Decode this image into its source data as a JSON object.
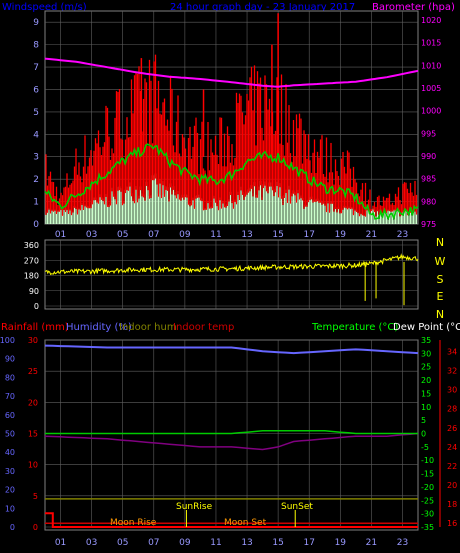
{
  "header": {
    "left_label": "Windspeed (m/s)",
    "title": "24 hour graph day - 23 January 2017",
    "right_label": "Barometer (hpa)"
  },
  "bottom_header": {
    "rainfall": "Rainfall (mm)",
    "humidity": "Humidity (%)",
    "indoor_hum": "Indoor hum",
    "indoor_temp": "Indoor temp",
    "temperature": "Temperature (°C)",
    "dew_point": "Dew Point (°C)"
  },
  "annotations": {
    "moon_rise": "Moon Rise",
    "sun_rise": "SunRise",
    "moon_set": "Moon Set",
    "sun_set": "SunSet"
  },
  "colors": {
    "wind": "#ff0000",
    "wind_avg": "#00cc00",
    "gust_band": "#ccffcc",
    "barometer": "#ff00ff",
    "direction": "#ffff00",
    "humidity": "#6666ff",
    "indoor_temp": "#cc0000",
    "temperature": "#00cc00",
    "dew_point": "#800080",
    "indoor_hum": "#808000",
    "rain": "#ff0000",
    "grid": "#606060",
    "axis_title": "#0000ff"
  },
  "chart_data": [
    {
      "type": "line",
      "x_ticks": [
        "01",
        "03",
        "05",
        "07",
        "09",
        "11",
        "13",
        "15",
        "17",
        "19",
        "21",
        "23"
      ],
      "y_left_ticks": [
        "0",
        "1",
        "2",
        "3",
        "4",
        "5",
        "6",
        "7",
        "8",
        "9"
      ],
      "y_left_lim": [
        0,
        9.5
      ],
      "y_right_ticks": [
        "975",
        "980",
        "985",
        "990",
        "995",
        "1000",
        "1005",
        "1010",
        "1015",
        "1020"
      ],
      "y_right_lim": [
        975,
        1022
      ],
      "series": [
        {
          "name": "Barometer (hpa)",
          "x": [
            0,
            2,
            4,
            6,
            8,
            10,
            12,
            14,
            15,
            16,
            18,
            20,
            22,
            24
          ],
          "y": [
            1011.5,
            1010.8,
            1009.6,
            1008.4,
            1007.5,
            1007.0,
            1006.3,
            1005.5,
            1005.3,
            1005.6,
            1006.0,
            1006.4,
            1007.4,
            1008.8
          ]
        },
        {
          "x": [
            0,
            1,
            2,
            3,
            4,
            5,
            6,
            7,
            8,
            9,
            10,
            11,
            12,
            13,
            14,
            15,
            16,
            17,
            18,
            19,
            20,
            21,
            22,
            23,
            24
          ],
          "y": [
            1.4,
            0.8,
            1.3,
            1.8,
            2.3,
            2.8,
            3.2,
            3.5,
            2.8,
            2.3,
            2.0,
            1.9,
            2.2,
            2.8,
            3.0,
            3.0,
            2.5,
            2.0,
            1.6,
            1.5,
            1.2,
            0.4,
            0.4,
            0.6,
            0.6
          ]
        },
        {
          "x": [
            0,
            1,
            2,
            3,
            4,
            5,
            6,
            7,
            8,
            9,
            10,
            11,
            12,
            13,
            14,
            15,
            16,
            17,
            18,
            19,
            20,
            21,
            22,
            23,
            24
          ],
          "y": [
            2.7,
            1.2,
            2.9,
            3.6,
            4.6,
            5.2,
            5.7,
            6.3,
            5.4,
            4.2,
            3.9,
            3.6,
            4.6,
            5.5,
            6.0,
            5.8,
            4.8,
            4.0,
            3.2,
            3.0,
            2.3,
            1.2,
            1.0,
            1.6,
            1.8
          ]
        }
      ]
    },
    {
      "type": "line",
      "x_ticks": [
        "01",
        "03",
        "05",
        "07",
        "09",
        "11",
        "13",
        "15",
        "17",
        "19",
        "21",
        "23"
      ],
      "y_ticks": [
        "0",
        "90",
        "180",
        "270",
        "360"
      ],
      "y_lim": [
        0,
        360
      ],
      "compass": [
        "N",
        "W",
        "S",
        "E",
        "N"
      ],
      "series": [
        {
          "x": [
            0,
            3,
            6,
            9,
            12,
            15,
            18,
            20,
            21,
            22,
            23,
            24
          ],
          "y": [
            200,
            205,
            215,
            215,
            220,
            230,
            235,
            240,
            250,
            270,
            290,
            280
          ]
        }
      ]
    },
    {
      "type": "line",
      "x_ticks": [
        "01",
        "03",
        "05",
        "07",
        "09",
        "11",
        "13",
        "15",
        "17",
        "19",
        "21",
        "23"
      ],
      "rain_ticks": [
        "0",
        "5",
        "10",
        "15",
        "20",
        "25",
        "30"
      ],
      "rain_lim": [
        0,
        30
      ],
      "humidity_ticks": [
        "0",
        "10",
        "20",
        "30",
        "40",
        "50",
        "60",
        "70",
        "80",
        "90",
        "100"
      ],
      "humidity_lim": [
        0,
        100
      ],
      "temp_ticks": [
        "-35",
        "-30",
        "-25",
        "-20",
        "-15",
        "-10",
        "-5",
        "0",
        "5",
        "10",
        "15",
        "20",
        "25",
        "30",
        "35"
      ],
      "temp_lim": [
        -35,
        35
      ],
      "indoor_ticks": [
        "16",
        "18",
        "20",
        "22",
        "24",
        "26",
        "28",
        "30",
        "32",
        "34"
      ],
      "indoor_lim": [
        15.6,
        35.2
      ],
      "series": [
        {
          "name": "Humidity (%)",
          "x": [
            0,
            4,
            8,
            12,
            14,
            16,
            18,
            20,
            22,
            24
          ],
          "y": [
            97,
            96,
            96,
            96,
            94,
            93,
            94,
            95,
            94,
            93
          ]
        },
        {
          "name": "Temperature (°C)",
          "x": [
            0,
            8,
            12,
            14,
            16,
            18,
            20,
            24
          ],
          "y": [
            0,
            0,
            0,
            1,
            1,
            1,
            0,
            0
          ]
        },
        {
          "name": "Dew Point (°C)",
          "x": [
            0,
            2,
            4,
            6,
            8,
            10,
            12,
            14,
            15,
            16,
            18,
            20,
            22,
            24
          ],
          "y": [
            -1,
            -1.5,
            -2,
            -3,
            -4,
            -5,
            -5,
            -6,
            -5,
            -3,
            -2,
            -1,
            -1,
            0
          ]
        },
        {
          "name": "Indoor hum",
          "x": [
            0,
            24
          ],
          "y": [
            15,
            15
          ]
        },
        {
          "name": "Indoor temp",
          "x": [
            0,
            24
          ],
          "y": [
            16,
            16
          ]
        },
        {
          "name": "Rainfall (mm)",
          "x": [
            0,
            0.5,
            0.5,
            24
          ],
          "y": [
            2.2,
            2.2,
            0,
            0
          ]
        }
      ]
    }
  ]
}
